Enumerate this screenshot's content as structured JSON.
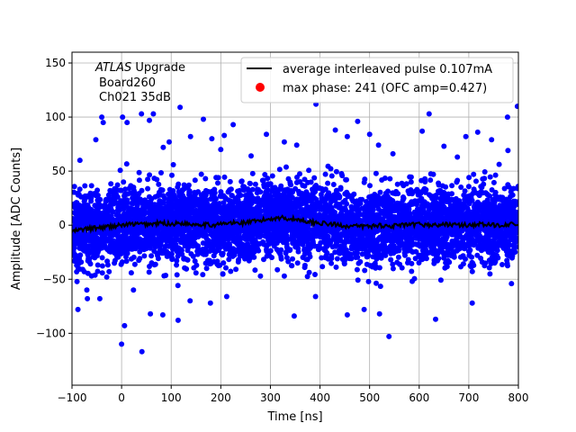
{
  "chart_data": {
    "type": "scatter",
    "title": "",
    "xlabel": "Time [ns]",
    "ylabel": "Amplitude [ADC Counts]",
    "xlim": [
      -100,
      800
    ],
    "ylim": [
      -148,
      160
    ],
    "xticks": [
      -100,
      0,
      100,
      200,
      300,
      400,
      500,
      600,
      700,
      800
    ],
    "yticks": [
      -100,
      -50,
      0,
      50,
      100,
      150
    ],
    "grid": true,
    "annotation": {
      "line1_italic": "ATLAS",
      "line1_rest": " Upgrade",
      "line2": "Board260",
      "line3": "Ch021 35dB"
    },
    "legend": {
      "placement": "top-right",
      "entries": [
        {
          "label": "average interleaved pulse 0.107mA",
          "marker": "line",
          "color": "#000000"
        },
        {
          "label": "max phase: 241 (OFC amp=0.427)",
          "marker": "dot",
          "color": "#ff0000"
        }
      ]
    },
    "series": [
      {
        "kind": "scatter",
        "color": "#0000ff",
        "noise_sigma": 17,
        "outliers": [
          [
            -88,
            -78
          ],
          [
            -69,
            -68
          ],
          [
            -44,
            -68
          ],
          [
            -30,
            -48
          ],
          [
            0,
            -110
          ],
          [
            6,
            -93
          ],
          [
            24,
            -60
          ],
          [
            41,
            -117
          ],
          [
            58,
            -82
          ],
          [
            83,
            -83
          ],
          [
            114,
            -88
          ],
          [
            138,
            -70
          ],
          [
            179,
            -72
          ],
          [
            212,
            -66
          ],
          [
            328,
            -47
          ],
          [
            348,
            -84
          ],
          [
            391,
            -66
          ],
          [
            455,
            -83
          ],
          [
            489,
            -78
          ],
          [
            520,
            -82
          ],
          [
            539,
            -103
          ],
          [
            633,
            -87
          ],
          [
            707,
            -72
          ],
          [
            786,
            -54
          ],
          [
            -84,
            60
          ],
          [
            -52,
            79
          ],
          [
            -37,
            95
          ],
          [
            2,
            100
          ],
          [
            11,
            95
          ],
          [
            40,
            103
          ],
          [
            56,
            97
          ],
          [
            84,
            72
          ],
          [
            118,
            109
          ],
          [
            139,
            82
          ],
          [
            165,
            98
          ],
          [
            182,
            80
          ],
          [
            207,
            83
          ],
          [
            225,
            93
          ],
          [
            261,
            64
          ],
          [
            292,
            84
          ],
          [
            328,
            77
          ],
          [
            353,
            74
          ],
          [
            392,
            112
          ],
          [
            431,
            88
          ],
          [
            476,
            96
          ],
          [
            500,
            84
          ],
          [
            518,
            74
          ],
          [
            547,
            66
          ],
          [
            606,
            87
          ],
          [
            620,
            103
          ],
          [
            650,
            73
          ],
          [
            694,
            82
          ],
          [
            718,
            86
          ],
          [
            746,
            79
          ],
          [
            779,
            69
          ],
          [
            798,
            110
          ],
          [
            778,
            100
          ],
          [
            -40,
            100
          ],
          [
            64,
            103
          ],
          [
            96,
            77
          ],
          [
            200,
            70
          ],
          [
            455,
            82
          ],
          [
            677,
            63
          ]
        ]
      },
      {
        "kind": "line",
        "name": "average interleaved pulse 0.107mA",
        "color": "#000000",
        "x": [
          -100,
          -80,
          -60,
          -40,
          -20,
          0,
          20,
          40,
          60,
          80,
          100,
          120,
          140,
          160,
          180,
          200,
          220,
          240,
          260,
          280,
          300,
          320,
          340,
          360,
          380,
          400,
          420,
          440,
          460,
          480,
          500,
          520,
          540,
          560,
          580,
          600,
          620,
          640,
          660,
          680,
          700,
          720,
          740,
          760,
          780,
          800
        ],
        "y": [
          -6,
          -4,
          -3,
          -2,
          -1,
          0,
          1,
          1,
          1,
          2,
          1,
          2,
          1,
          1,
          0,
          1,
          2,
          2,
          3,
          4,
          6,
          7,
          6,
          5,
          3,
          2,
          1,
          0,
          -1,
          -1,
          -1,
          0,
          -1,
          0,
          0,
          1,
          0,
          0,
          1,
          0,
          0,
          1,
          0,
          0,
          1,
          0
        ]
      }
    ]
  }
}
